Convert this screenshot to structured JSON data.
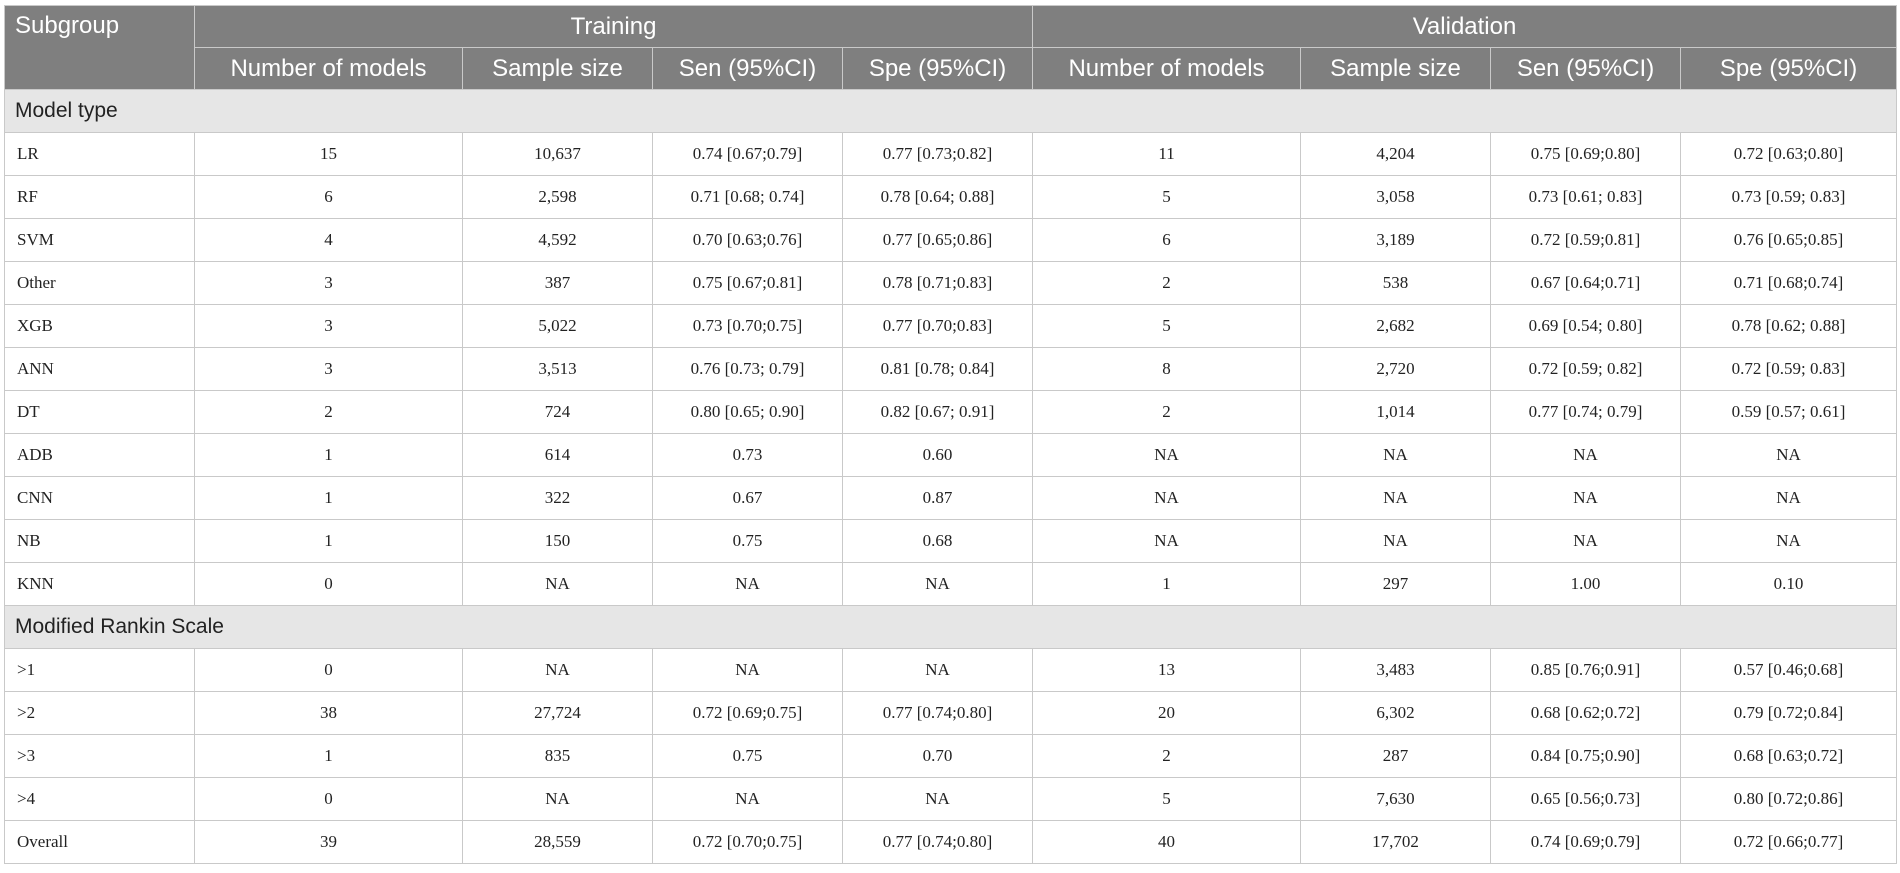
{
  "header": {
    "subgroup": "Subgroup",
    "training": "Training",
    "validation": "Validation",
    "columns": [
      "Number of models",
      "Sample size",
      "Sen (95%CI)",
      "Spe (95%CI)"
    ]
  },
  "sections": [
    {
      "title": "Model type",
      "rows": [
        [
          "LR",
          "15",
          "10,637",
          "0.74 [0.67;0.79]",
          "0.77 [0.73;0.82]",
          "11",
          "4,204",
          "0.75 [0.69;0.80]",
          "0.72 [0.63;0.80]"
        ],
        [
          "RF",
          "6",
          "2,598",
          "0.71 [0.68; 0.74]",
          "0.78 [0.64; 0.88]",
          "5",
          "3,058",
          "0.73 [0.61; 0.83]",
          "0.73 [0.59; 0.83]"
        ],
        [
          "SVM",
          "4",
          "4,592",
          "0.70 [0.63;0.76]",
          "0.77 [0.65;0.86]",
          "6",
          "3,189",
          "0.72 [0.59;0.81]",
          "0.76 [0.65;0.85]"
        ],
        [
          "Other",
          "3",
          "387",
          "0.75 [0.67;0.81]",
          "0.78 [0.71;0.83]",
          "2",
          "538",
          "0.67 [0.64;0.71]",
          "0.71 [0.68;0.74]"
        ],
        [
          "XGB",
          "3",
          "5,022",
          "0.73 [0.70;0.75]",
          "0.77 [0.70;0.83]",
          "5",
          "2,682",
          "0.69 [0.54; 0.80]",
          "0.78 [0.62; 0.88]"
        ],
        [
          "ANN",
          "3",
          "3,513",
          "0.76 [0.73; 0.79]",
          "0.81 [0.78; 0.84]",
          "8",
          "2,720",
          "0.72 [0.59; 0.82]",
          "0.72 [0.59; 0.83]"
        ],
        [
          "DT",
          "2",
          "724",
          "0.80 [0.65; 0.90]",
          "0.82 [0.67; 0.91]",
          "2",
          "1,014",
          "0.77 [0.74; 0.79]",
          "0.59 [0.57; 0.61]"
        ],
        [
          "ADB",
          "1",
          "614",
          "0.73",
          "0.60",
          "NA",
          "NA",
          "NA",
          "NA"
        ],
        [
          "CNN",
          "1",
          "322",
          "0.67",
          "0.87",
          "NA",
          "NA",
          "NA",
          "NA"
        ],
        [
          "NB",
          "1",
          "150",
          "0.75",
          "0.68",
          "NA",
          "NA",
          "NA",
          "NA"
        ],
        [
          "KNN",
          "0",
          "NA",
          "NA",
          "NA",
          "1",
          "297",
          "1.00",
          "0.10"
        ]
      ]
    },
    {
      "title": "Modified Rankin Scale",
      "rows": [
        [
          ">1",
          "0",
          "NA",
          "NA",
          "NA",
          "13",
          "3,483",
          "0.85 [0.76;0.91]",
          "0.57 [0.46;0.68]"
        ],
        [
          ">2",
          "38",
          "27,724",
          "0.72 [0.69;0.75]",
          "0.77 [0.74;0.80]",
          "20",
          "6,302",
          "0.68 [0.62;0.72]",
          "0.79 [0.72;0.84]"
        ],
        [
          ">3",
          "1",
          "835",
          "0.75",
          "0.70",
          "2",
          "287",
          "0.84 [0.75;0.90]",
          "0.68 [0.63;0.72]"
        ],
        [
          ">4",
          "0",
          "NA",
          "NA",
          "NA",
          "5",
          "7,630",
          "0.65 [0.56;0.73]",
          "0.80 [0.72;0.86]"
        ],
        [
          "Overall",
          "39",
          "28,559",
          "0.72 [0.70;0.75]",
          "0.77 [0.74;0.80]",
          "40",
          "17,702",
          "0.74 [0.69;0.79]",
          "0.72 [0.66;0.77]"
        ]
      ]
    }
  ]
}
